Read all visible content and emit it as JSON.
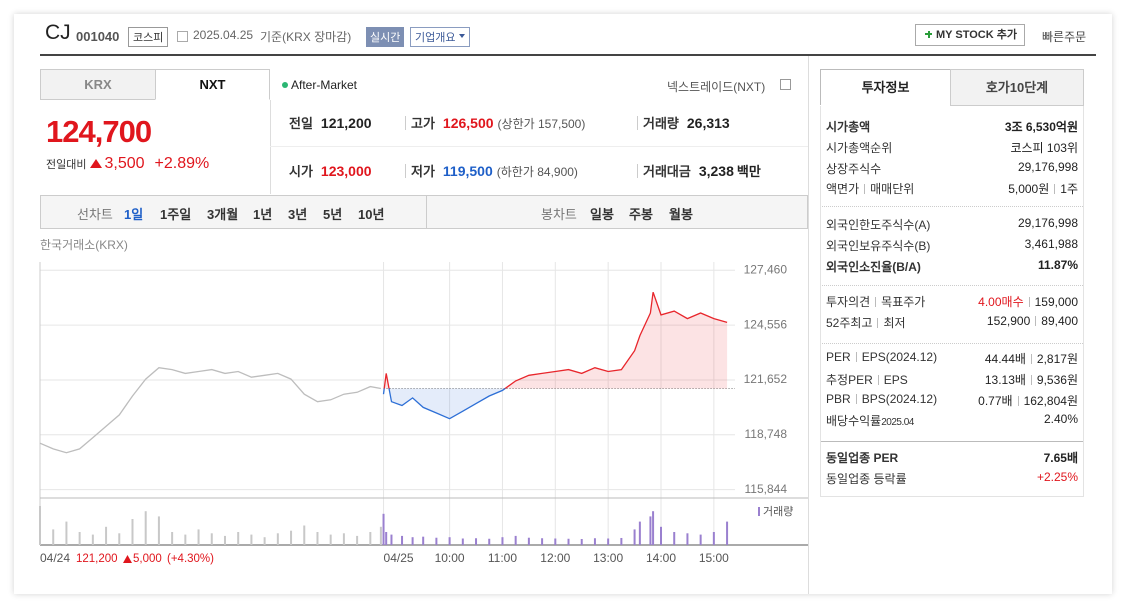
{
  "header": {
    "name": "CJ",
    "code": "001040",
    "market": "코스피",
    "date": "2025.04.25",
    "basis": "기준(KRX 장마감)",
    "realtime": "실시간",
    "company": "기업개요",
    "mystock": "MY STOCK 추가",
    "quick_order": "빠른주문"
  },
  "tabs": {
    "krx": "KRX",
    "nxt": "NXT",
    "after": "After-Market",
    "nextrade": "넥스트레이드(NXT)"
  },
  "quote": {
    "price": "124,700",
    "change_label": "전일대비",
    "change": "3,500",
    "rate": "+2.89%",
    "cells": [
      [
        {
          "label": "전일",
          "value": "121,200"
        },
        {
          "label": "고가",
          "value": "126,500",
          "color": "#e0161d",
          "extra": "(상한가 157,500)"
        },
        {
          "label": "거래량",
          "value": "26,313"
        }
      ],
      [
        {
          "label": "시가",
          "value": "123,000",
          "color": "#e0161d"
        },
        {
          "label": "저가",
          "value": "119,500",
          "color": "#1e5fc8",
          "extra": "(하한가 84,900)"
        },
        {
          "label": "거래대금",
          "value": "3,238",
          "unit": "백만"
        }
      ]
    ]
  },
  "toolbar": {
    "line": "선차트",
    "periods": [
      "1일",
      "1주일",
      "3개월",
      "1년",
      "3년",
      "5년",
      "10년"
    ],
    "candle": "봉차트",
    "candle_periods": [
      "일봉",
      "주봉",
      "월봉"
    ]
  },
  "chart_data": {
    "type": "line",
    "source": "한국거래소(KRX)",
    "volume_label": "거래량",
    "xlim": [
      2.25,
      15.4
    ],
    "ylim": [
      115400,
      127900
    ],
    "xticks": [
      {
        "value": 2.25,
        "label": "04/24"
      },
      {
        "value": 8.75,
        "label": "04/25"
      },
      {
        "value": 10,
        "label": "10:00"
      },
      {
        "value": 11,
        "label": "11:00"
      },
      {
        "value": 12,
        "label": "12:00"
      },
      {
        "value": 13,
        "label": "13:00"
      },
      {
        "value": 14,
        "label": "14:00"
      },
      {
        "value": 15,
        "label": "15:00"
      }
    ],
    "yticks": [
      {
        "value": 115844,
        "label": "115,844"
      },
      {
        "value": 118748,
        "label": "118,748"
      },
      {
        "value": 121652,
        "label": "121,652"
      },
      {
        "value": 124556,
        "label": "124,556"
      },
      {
        "value": 127460,
        "label": "127,460"
      }
    ],
    "grid": true,
    "baseline": 121200,
    "prev_summary": {
      "close": "121,200",
      "change": "5,000",
      "rate": "(+4.30%)"
    },
    "series": [
      {
        "color": "#bdbdbd",
        "x": [
          2.25,
          2.5,
          2.75,
          3,
          3.25,
          3.5,
          3.75,
          4,
          4.25,
          4.5,
          4.75,
          5,
          5.25,
          5.5,
          5.75,
          6,
          6.25,
          6.5,
          6.75,
          7,
          7.25,
          7.5,
          7.75,
          8,
          8.25,
          8.5,
          8.7
        ],
        "values": [
          118300,
          118000,
          117800,
          118000,
          118600,
          119200,
          119800,
          120800,
          121700,
          122300,
          122200,
          122000,
          122100,
          122200,
          122000,
          122100,
          121800,
          121900,
          122000,
          121700,
          120900,
          120500,
          120600,
          120900,
          121000,
          121300,
          121200
        ],
        "volume": [
          1500,
          600,
          900,
          500,
          400,
          700,
          450,
          1000,
          1300,
          1100,
          500,
          400,
          600,
          450,
          350,
          500,
          400,
          300,
          450,
          550,
          750,
          500,
          400,
          450,
          350,
          500,
          700
        ]
      },
      {
        "color": "#e8262c",
        "down_color": "#2d6fd6",
        "x": [
          8.75,
          8.8,
          8.9,
          9.1,
          9.3,
          9.5,
          9.75,
          10,
          10.25,
          10.5,
          10.75,
          11,
          11.25,
          11.5,
          11.75,
          12,
          12.25,
          12.5,
          12.75,
          13,
          13.25,
          13.5,
          13.6,
          13.8,
          13.85,
          14,
          14.25,
          14.5,
          14.75,
          15,
          15.25
        ],
        "values": [
          120900,
          122000,
          120500,
          120300,
          120700,
          120200,
          119900,
          119600,
          120000,
          120400,
          120800,
          121100,
          121600,
          121900,
          122000,
          122100,
          122200,
          122000,
          122300,
          122100,
          122200,
          123200,
          124000,
          125200,
          126300,
          125100,
          125300,
          124900,
          125200,
          124900,
          124700
        ],
        "volume": [
          1200,
          500,
          400,
          350,
          300,
          320,
          280,
          300,
          250,
          260,
          240,
          300,
          350,
          280,
          260,
          250,
          240,
          230,
          260,
          250,
          270,
          600,
          900,
          1100,
          1300,
          700,
          500,
          450,
          400,
          500,
          900
        ]
      }
    ]
  },
  "info": {
    "tabs": [
      "투자정보",
      "호가10단계"
    ],
    "groups": [
      [
        {
          "label": [
            "시가총액"
          ],
          "value": [
            "3조 6,530억원"
          ],
          "bold": true
        },
        {
          "label": [
            "시가총액순위"
          ],
          "value": [
            "코스피 103위"
          ]
        },
        {
          "label": [
            "상장주식수"
          ],
          "value": [
            "29,176,998"
          ]
        },
        {
          "label": [
            "액면가",
            "매매단위"
          ],
          "value": [
            "5,000원",
            "1주"
          ]
        }
      ],
      [
        {
          "label": [
            "외국인한도주식수(A)"
          ],
          "value": [
            "29,176,998"
          ]
        },
        {
          "label": [
            "외국인보유주식수(B)"
          ],
          "value": [
            "3,461,988"
          ]
        },
        {
          "label": [
            "외국인소진율(B/A)"
          ],
          "value": [
            "11.87%"
          ],
          "bold": true
        }
      ],
      [
        {
          "label": [
            "투자의견",
            "목표주가"
          ],
          "value": [
            "4.00매수",
            "159,000"
          ],
          "color": "#e0161d"
        },
        {
          "label": [
            "52주최고",
            "최저"
          ],
          "value": [
            "152,900",
            "89,400"
          ]
        }
      ],
      [
        {
          "label": [
            "PER",
            "EPS(2024.12)"
          ],
          "value": [
            "44.44배",
            "2,817원"
          ]
        },
        {
          "label": [
            "추정PER",
            "EPS"
          ],
          "value": [
            "13.13배",
            "9,536원"
          ]
        },
        {
          "label": [
            "PBR",
            "BPS(2024.12)"
          ],
          "value": [
            "0.77배",
            "162,804원"
          ]
        },
        {
          "label": [
            "배당수익률",
            "2025.04"
          ],
          "value": [
            "2.40%"
          ]
        }
      ],
      [
        {
          "label": [
            "동일업종 PER"
          ],
          "value": [
            "7.65배"
          ],
          "bold": true
        },
        {
          "label": [
            "동일업종 등락률"
          ],
          "value": [
            "+2.25%"
          ],
          "color": "#e0161d"
        }
      ]
    ]
  }
}
